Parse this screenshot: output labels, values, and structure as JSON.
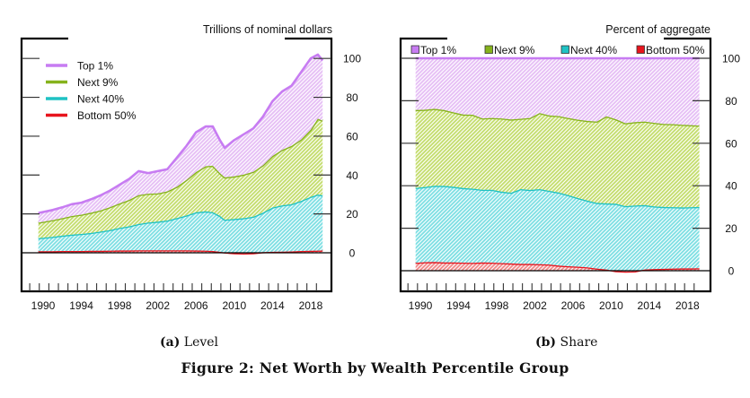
{
  "figure_title": "Figure 2: Net Worth by Wealth Percentile Group",
  "panels": [
    {
      "label": "(a)",
      "title": "Level"
    },
    {
      "label": "(b)",
      "title": "Share"
    }
  ],
  "colors": {
    "top1": "#c77cf2",
    "next9": "#86b31c",
    "next40": "#1fc2c4",
    "bottom50": "#e8141d",
    "top1_fill": "#e6bff5",
    "next9_fill": "#c4dd6e",
    "next40_fill": "#7edfe3",
    "bottom50_fill": "#f08a8a"
  },
  "chart_data": [
    {
      "type": "area",
      "stacked": true,
      "title": "(a) Level",
      "unit_label": "Trillions of nominal dollars",
      "xlabel": "",
      "ylabel": "Trillions of nominal dollars",
      "ylim": [
        -10,
        110
      ],
      "yticks": [
        0,
        20,
        40,
        60,
        80,
        100
      ],
      "xticks": [
        1990,
        1994,
        1998,
        2002,
        2006,
        2010,
        2014,
        2018
      ],
      "xlim": [
        1988,
        2020
      ],
      "legend": {
        "placement": "top-left",
        "style": "line",
        "entries": [
          "Top 1%",
          "Next 9%",
          "Next 40%",
          "Bottom 50%"
        ]
      },
      "x": [
        1989.5,
        1991,
        1992,
        1993,
        1994,
        1995,
        1996,
        1997,
        1998,
        1999,
        2000,
        2001,
        2002,
        2003,
        2004,
        2005,
        2006,
        2007,
        2007.75,
        2008.5,
        2009,
        2010,
        2011,
        2012,
        2013,
        2014,
        2015,
        2016,
        2017,
        2018,
        2018.75,
        2019.25
      ],
      "series": [
        {
          "name": "Bottom 50%",
          "key": "bottom50",
          "values": [
            0.8,
            0.8,
            0.9,
            0.9,
            0.9,
            1.0,
            1.0,
            1.1,
            1.2,
            1.2,
            1.3,
            1.3,
            1.3,
            1.3,
            1.3,
            1.3,
            1.2,
            1.1,
            0.9,
            0.5,
            0.2,
            -0.2,
            -0.3,
            -0.2,
            0.3,
            0.5,
            0.6,
            0.7,
            0.9,
            1.0,
            1.1,
            1.2
          ]
        },
        {
          "name": "Next 40%",
          "key": "next40",
          "values": [
            6.7,
            7.4,
            7.9,
            8.4,
            8.8,
            9.2,
            9.9,
            10.6,
            11.6,
            12.4,
            13.5,
            14.3,
            14.7,
            15.3,
            16.6,
            17.9,
            19.6,
            20.2,
            20.0,
            18.5,
            16.8,
            17.6,
            18.1,
            18.8,
            20.3,
            22.8,
            23.8,
            24.3,
            25.8,
            27.8,
            28.9,
            28.3
          ]
        },
        {
          "name": "Next 9%",
          "key": "next9",
          "values": [
            8.0,
            8.6,
            9.0,
            9.6,
            9.9,
            10.4,
            10.9,
            11.8,
            12.6,
            13.6,
            14.9,
            14.8,
            14.6,
            15.0,
            16.1,
            18.3,
            20.7,
            23.2,
            23.9,
            22.0,
            21.8,
            21.9,
            22.4,
            23.1,
            24.4,
            26.5,
            28.5,
            30.0,
            31.6,
            34.5,
            39.0,
            38.5
          ]
        },
        {
          "name": "Top 1%",
          "key": "top1",
          "values": [
            5.0,
            5.2,
            5.6,
            6.1,
            6.2,
            6.9,
            7.7,
            8.5,
            9.6,
            10.8,
            12.3,
            10.6,
            11.4,
            11.4,
            15.0,
            17.5,
            20.5,
            20.5,
            20.2,
            17.0,
            15.2,
            18.7,
            20.8,
            22.3,
            25.0,
            28.2,
            30.1,
            31.0,
            34.7,
            36.7,
            33.0,
            31.0
          ]
        }
      ]
    },
    {
      "type": "area",
      "stacked": true,
      "title": "(b) Share",
      "unit_label": "Percent of aggregate",
      "xlabel": "",
      "ylabel": "Percent of aggregate",
      "ylim": [
        -5,
        105
      ],
      "yticks": [
        0,
        20,
        40,
        60,
        80,
        100
      ],
      "xticks": [
        1990,
        1994,
        1998,
        2002,
        2006,
        2010,
        2014,
        2018
      ],
      "xlim": [
        1988,
        2020
      ],
      "legend": {
        "placement": "top",
        "style": "box",
        "entries": [
          "Top 1%",
          "Next 9%",
          "Next 40%",
          "Bottom 50%"
        ]
      },
      "x": [
        1989.5,
        1990.5,
        1991.5,
        1992.5,
        1993.5,
        1994.5,
        1995.5,
        1996.5,
        1997.5,
        1998.5,
        1999.5,
        2000.5,
        2001.5,
        2002.5,
        2003.5,
        2004.5,
        2005.5,
        2006.5,
        2007.5,
        2008.5,
        2009.5,
        2010.5,
        2011.5,
        2012.5,
        2013.5,
        2014.5,
        2015.5,
        2016.5,
        2017.5,
        2018.5,
        2019.25
      ],
      "series": [
        {
          "name": "Bottom 50%",
          "key": "bottom50",
          "values": [
            3.7,
            4.0,
            4.1,
            3.9,
            3.9,
            3.8,
            3.7,
            3.9,
            3.8,
            3.6,
            3.4,
            3.2,
            3.2,
            3.1,
            2.9,
            2.4,
            2.1,
            1.9,
            1.6,
            1.0,
            0.6,
            -0.2,
            -0.4,
            -0.3,
            0.6,
            0.8,
            0.9,
            1.0,
            1.1,
            1.1,
            1.2
          ]
        },
        {
          "name": "Next 40%",
          "key": "next40",
          "values": [
            35.3,
            35.4,
            35.9,
            36.0,
            35.6,
            35.1,
            34.9,
            34.2,
            34.3,
            33.6,
            33.3,
            35.2,
            34.8,
            35.3,
            34.7,
            34.4,
            33.5,
            32.3,
            31.4,
            30.9,
            31.1,
            31.7,
            30.8,
            31.0,
            30.3,
            29.5,
            29.1,
            28.9,
            28.7,
            28.8,
            28.8
          ]
        },
        {
          "name": "Next 9%",
          "key": "next9",
          "values": [
            36.6,
            36.4,
            36.2,
            35.7,
            35.0,
            34.6,
            34.8,
            33.6,
            33.8,
            34.5,
            34.5,
            33.1,
            33.9,
            35.8,
            35.5,
            36.0,
            36.3,
            36.9,
            37.5,
            38.3,
            41.0,
            39.8,
            39.0,
            39.2,
            39.3,
            39.3,
            39.1,
            39.1,
            38.9,
            38.6,
            38.3
          ]
        },
        {
          "name": "Top 1%",
          "key": "top1",
          "values": [
            24.4,
            24.2,
            23.8,
            24.4,
            25.5,
            26.5,
            26.6,
            28.3,
            28.1,
            28.3,
            28.8,
            28.5,
            28.1,
            25.8,
            26.9,
            27.2,
            28.1,
            28.9,
            29.5,
            29.8,
            27.3,
            28.7,
            30.6,
            30.1,
            29.8,
            30.4,
            30.9,
            31.0,
            31.3,
            31.5,
            31.7
          ]
        }
      ]
    }
  ]
}
